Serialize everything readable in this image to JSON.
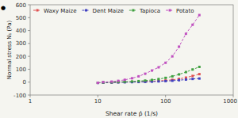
{
  "chart_data": {
    "type": "line",
    "xlabel": "Shear rate  ṗ̇  (1/s)",
    "ylabel": "Normal stress  N₁  (Pa)",
    "annotations": [
      "●"
    ],
    "x": [
      10,
      12,
      16,
      20,
      25,
      32,
      40,
      50,
      63,
      79,
      100,
      126,
      158,
      200,
      251,
      316
    ],
    "series": [
      {
        "name": "Waxy Maize",
        "color": "#e05050",
        "values": [
          -5,
          -3,
          -2,
          0,
          1,
          2,
          3,
          5,
          7,
          10,
          13,
          18,
          25,
          35,
          48,
          62
        ]
      },
      {
        "name": "Dent Maize",
        "color": "#4040c0",
        "values": [
          -6,
          -4,
          -3,
          -2,
          -1,
          0,
          1,
          2,
          4,
          6,
          8,
          11,
          15,
          20,
          25,
          28
        ]
      },
      {
        "name": "Tapioca",
        "color": "#40a040",
        "values": [
          -5,
          -3,
          -1,
          1,
          3,
          5,
          8,
          12,
          17,
          24,
          33,
          45,
          60,
          78,
          98,
          118
        ]
      },
      {
        "name": "Potato",
        "color": "#c050c0",
        "values": [
          -5,
          0,
          4,
          10,
          18,
          30,
          45,
          65,
          90,
          115,
          150,
          200,
          275,
          375,
          445,
          520
        ]
      }
    ],
    "marker": "square",
    "line_style": "dashed",
    "log": "x",
    "xlim": [
      1,
      1000
    ],
    "xticks": [
      1,
      10,
      100,
      1000
    ],
    "ylim": [
      -100,
      600
    ],
    "yticks": [
      -100,
      0,
      100,
      200,
      300,
      400,
      500,
      600
    ],
    "grid": false,
    "legend": "upper left"
  }
}
